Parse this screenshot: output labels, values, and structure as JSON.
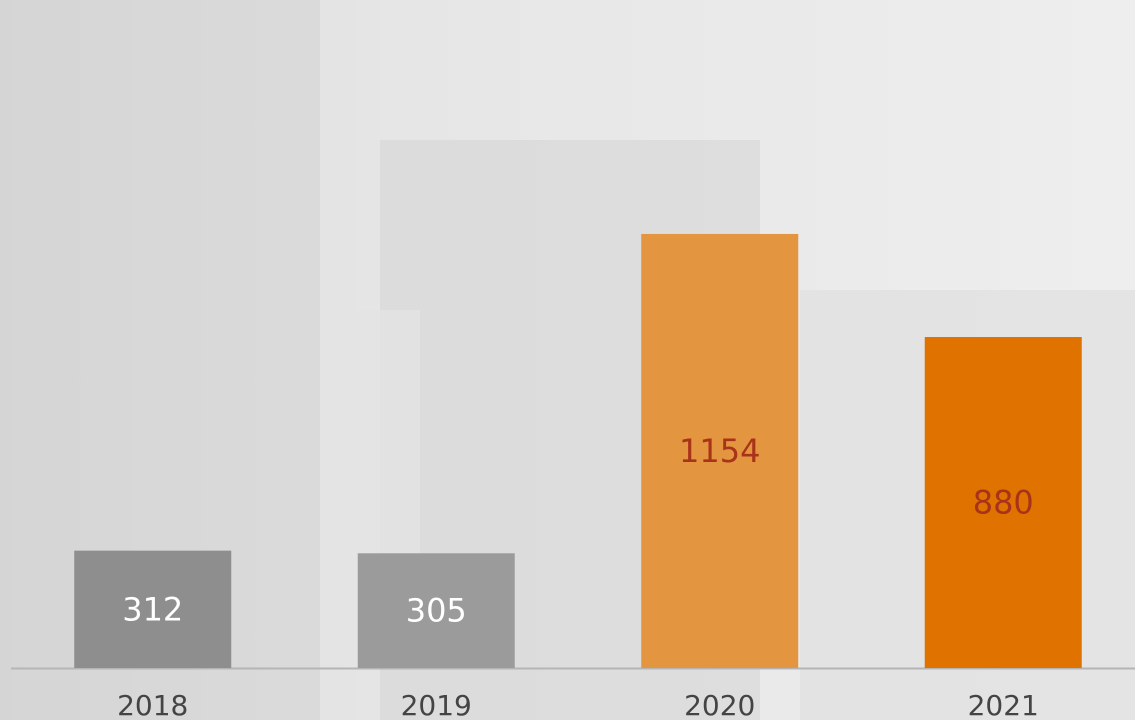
{
  "chart_data": {
    "type": "bar",
    "categories": [
      "2018",
      "2019",
      "2020",
      "2021"
    ],
    "values": [
      312,
      305,
      1154,
      880
    ],
    "colors": [
      "#8e8e8e",
      "#9b9b9b",
      "#e3953f",
      "#e07200"
    ],
    "label_colors": [
      "#ffffff",
      "#ffffff",
      "#a8331a",
      "#a8331a"
    ],
    "ylim": [
      0,
      1776
    ]
  }
}
